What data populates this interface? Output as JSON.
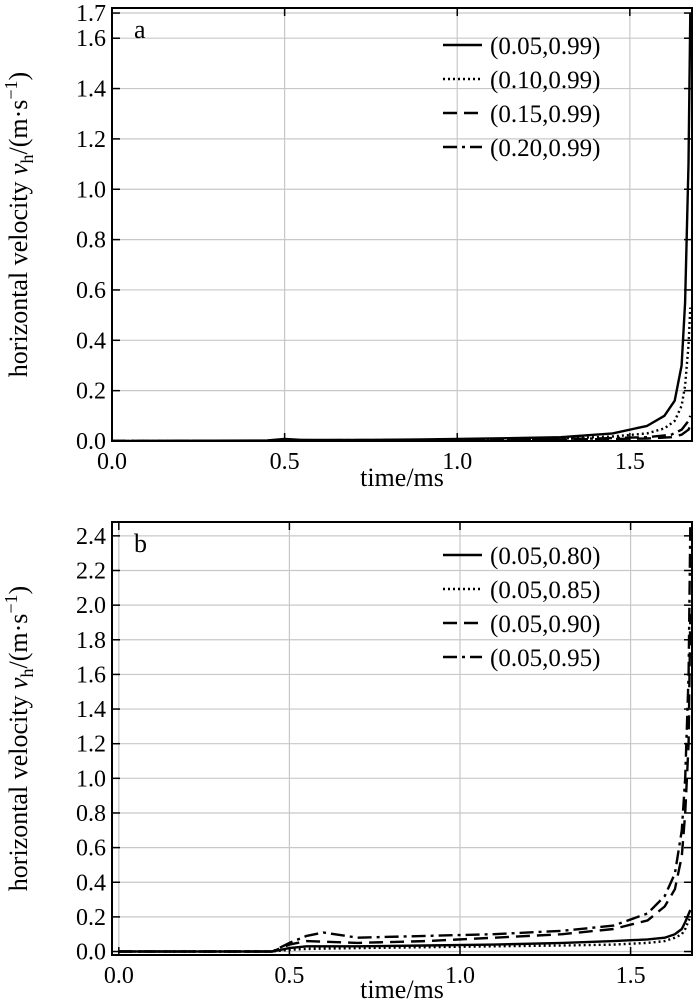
{
  "chart_data": [
    {
      "type": "line",
      "panel_label": "a",
      "xlabel": "time/ms",
      "ylabel": "horizontal velocity v_h/(m·s⁻¹)",
      "ylabel_main": "horizontal velocity ",
      "ylabel_var": "v",
      "ylabel_sub": "h",
      "ylabel_unit": "/(m·s",
      "ylabel_exp": "−1",
      "ylabel_close": ")",
      "xlim": [
        0.0,
        1.68
      ],
      "ylim": [
        0.0,
        1.72
      ],
      "xticks": [
        0.0,
        0.5,
        1.0,
        1.5
      ],
      "xtick_labels": [
        "0.0",
        "0.5",
        "1.0",
        "1.5"
      ],
      "yticks": [
        0.0,
        0.2,
        0.4,
        0.6,
        0.8,
        1.0,
        1.2,
        1.4,
        1.6,
        1.7
      ],
      "ytick_labels": [
        "0.0",
        "0.2",
        "0.4",
        "0.6",
        "0.8",
        "1.0",
        "1.2",
        "1.4",
        "1.6",
        "1.7"
      ],
      "grid": true,
      "legend_position": "top-right",
      "series": [
        {
          "name": "(0.05,0.99)",
          "style": "solid",
          "x": [
            0.0,
            0.45,
            0.5,
            0.55,
            0.7,
            0.9,
            1.1,
            1.3,
            1.45,
            1.55,
            1.6,
            1.63,
            1.65,
            1.66,
            1.67,
            1.675
          ],
          "y": [
            0.0,
            0.002,
            0.008,
            0.004,
            0.004,
            0.006,
            0.01,
            0.015,
            0.03,
            0.06,
            0.1,
            0.16,
            0.3,
            0.55,
            1.1,
            1.7
          ]
        },
        {
          "name": "(0.10,0.99)",
          "style": "dotted",
          "x": [
            0.0,
            0.45,
            0.5,
            0.55,
            0.7,
            0.9,
            1.1,
            1.3,
            1.45,
            1.55,
            1.6,
            1.63,
            1.65,
            1.66,
            1.67,
            1.675
          ],
          "y": [
            0.0,
            0.001,
            0.005,
            0.003,
            0.003,
            0.004,
            0.006,
            0.01,
            0.018,
            0.03,
            0.05,
            0.08,
            0.14,
            0.22,
            0.38,
            0.53
          ]
        },
        {
          "name": "(0.15,0.99)",
          "style": "dashed",
          "x": [
            0.0,
            0.45,
            0.5,
            0.6,
            0.8,
            1.0,
            1.2,
            1.4,
            1.55,
            1.62,
            1.65,
            1.67,
            1.675
          ],
          "y": [
            0.0,
            0.001,
            0.003,
            0.002,
            0.002,
            0.004,
            0.005,
            0.007,
            0.01,
            0.015,
            0.025,
            0.045,
            0.06
          ]
        },
        {
          "name": "(0.20,0.99)",
          "style": "dashdot",
          "x": [
            0.0,
            0.45,
            0.5,
            0.6,
            0.8,
            1.0,
            1.2,
            1.4,
            1.55,
            1.62,
            1.65,
            1.67,
            1.675
          ],
          "y": [
            0.0,
            0.001,
            0.004,
            0.003,
            0.004,
            0.006,
            0.008,
            0.01,
            0.015,
            0.025,
            0.045,
            0.08,
            0.1
          ]
        }
      ]
    },
    {
      "type": "line",
      "panel_label": "b",
      "xlabel": "time/ms",
      "ylabel": "horizontal velocity v_h/(m·s⁻¹)",
      "ylabel_main": "horizontal velocity ",
      "ylabel_var": "v",
      "ylabel_sub": "h",
      "ylabel_unit": "/(m·s",
      "ylabel_exp": "−1",
      "ylabel_close": ")",
      "xlim": [
        -0.02,
        1.68
      ],
      "ylim": [
        -0.02,
        2.48
      ],
      "xticks": [
        0.0,
        0.5,
        1.0,
        1.5
      ],
      "xtick_labels": [
        "0.0",
        "0.5",
        "1.0",
        "1.5"
      ],
      "yticks": [
        0.0,
        0.2,
        0.4,
        0.6,
        0.8,
        1.0,
        1.2,
        1.4,
        1.6,
        1.8,
        2.0,
        2.2,
        2.4
      ],
      "ytick_labels": [
        "0.0",
        "0.2",
        "0.4",
        "0.6",
        "0.8",
        "1.0",
        "1.2",
        "1.4",
        "1.6",
        "1.8",
        "2.0",
        "2.2",
        "2.4"
      ],
      "grid": true,
      "legend_position": "top-right",
      "series": [
        {
          "name": "(0.05,0.80)",
          "style": "solid",
          "x": [
            0.0,
            0.45,
            0.5,
            0.55,
            0.7,
            0.9,
            1.1,
            1.3,
            1.45,
            1.55,
            1.6,
            1.63,
            1.65,
            1.66,
            1.675
          ],
          "y": [
            0.0,
            0.0,
            0.02,
            0.03,
            0.03,
            0.035,
            0.04,
            0.05,
            0.06,
            0.07,
            0.08,
            0.1,
            0.13,
            0.17,
            0.24
          ]
        },
        {
          "name": "(0.05,0.85)",
          "style": "dotted",
          "x": [
            0.0,
            0.45,
            0.5,
            0.55,
            0.7,
            0.9,
            1.1,
            1.3,
            1.45,
            1.55,
            1.6,
            1.63,
            1.65,
            1.66,
            1.675
          ],
          "y": [
            0.0,
            0.0,
            0.01,
            0.015,
            0.02,
            0.025,
            0.03,
            0.035,
            0.04,
            0.05,
            0.06,
            0.08,
            0.1,
            0.13,
            0.2
          ]
        },
        {
          "name": "(0.05,0.90)",
          "style": "dashed",
          "x": [
            0.0,
            0.45,
            0.5,
            0.55,
            0.7,
            0.9,
            1.1,
            1.3,
            1.45,
            1.55,
            1.6,
            1.63,
            1.65,
            1.66,
            1.67,
            1.675
          ],
          "y": [
            0.0,
            0.0,
            0.04,
            0.06,
            0.05,
            0.06,
            0.08,
            0.1,
            0.13,
            0.18,
            0.26,
            0.36,
            0.55,
            0.8,
            1.2,
            1.95
          ]
        },
        {
          "name": "(0.05,0.95)",
          "style": "dashdot",
          "x": [
            0.0,
            0.45,
            0.5,
            0.55,
            0.6,
            0.7,
            0.9,
            1.1,
            1.3,
            1.45,
            1.55,
            1.6,
            1.63,
            1.65,
            1.66,
            1.67,
            1.675
          ],
          "y": [
            0.0,
            0.0,
            0.05,
            0.09,
            0.11,
            0.08,
            0.09,
            0.1,
            0.12,
            0.15,
            0.22,
            0.32,
            0.45,
            0.7,
            1.0,
            1.6,
            2.45
          ]
        }
      ]
    }
  ]
}
